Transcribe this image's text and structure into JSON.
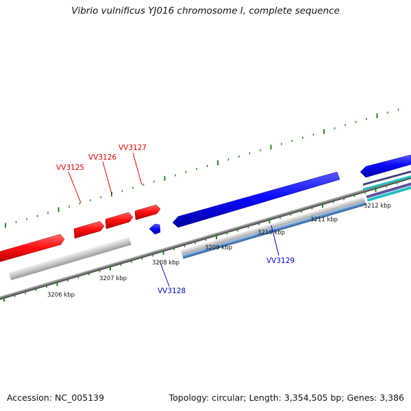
{
  "title": "Vibrio vulnificus YJ016 chromosome I, complete sequence",
  "footer": {
    "accession": "Accession: NC_005139",
    "summary": "Topology: circular; Length: 3,354,505 bp; Genes: 3,386"
  },
  "colors": {
    "forward_gene": "#ff0000",
    "reverse_gene": "#0000ff",
    "backbone": "#808080",
    "tick": "#1a8a1a",
    "cds_forward": "#c8c8c8",
    "cds_reverse": "#5a8fc8",
    "cds_reverse_alt": "#20c0c0"
  },
  "genes": {
    "forward": [
      "VV3125",
      "VV3126",
      "VV3127"
    ],
    "reverse": [
      "VV3128",
      "VV3129"
    ]
  },
  "scale": {
    "labels": [
      "3206 kbp",
      "3207 kbp",
      "3208 kbp",
      "3209 kbp",
      "3210 kbp",
      "3211 kbp",
      "3212 kbp"
    ]
  }
}
